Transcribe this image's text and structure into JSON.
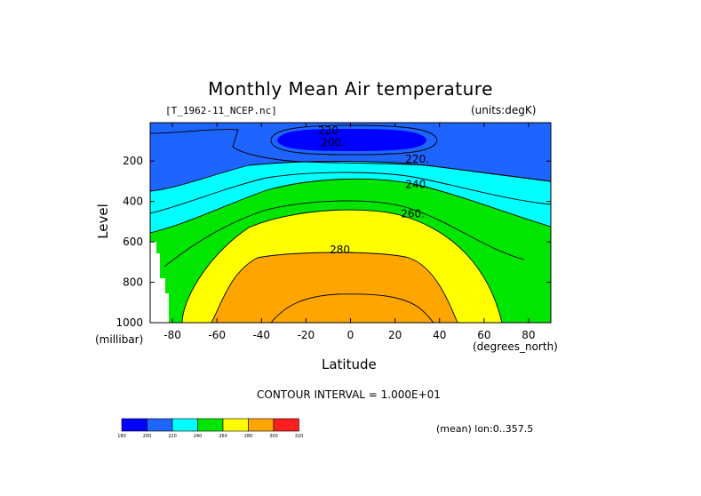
{
  "chart_data": {
    "type": "contour",
    "title": "Monthly Mean Air temperature",
    "file_label": "[T_1962-11_NCEP.nc]",
    "units_label": "(units:degK)",
    "xlabel": "Latitude",
    "xunit": "(degrees_north)",
    "ylabel": "Level",
    "yunit": "(millibar)",
    "xlim": [
      -90,
      90
    ],
    "ylim": [
      1000,
      10
    ],
    "xticks": [
      -80,
      -60,
      -40,
      -20,
      0,
      20,
      40,
      60,
      80
    ],
    "yticks": [
      200,
      400,
      600,
      800,
      1000
    ],
    "contour_interval_text": "CONTOUR INTERVAL = 1.000E+01",
    "mean_text": "(mean) lon:0..357.5",
    "contour_labels": [
      {
        "text": "220",
        "lat": -10,
        "level": 50
      },
      {
        "text": "200.",
        "lat": -8,
        "level": 110
      },
      {
        "text": "220.",
        "lat": 30,
        "level": 190
      },
      {
        "text": "240.",
        "lat": 30,
        "level": 315
      },
      {
        "text": "260.",
        "lat": 28,
        "level": 460
      },
      {
        "text": "280.",
        "lat": -4,
        "level": 640
      }
    ],
    "colorbar": {
      "levels": [
        "180",
        "200",
        "220",
        "240",
        "260",
        "280",
        "300",
        "320"
      ],
      "colors": [
        "#0000ff",
        "#1e64ff",
        "#00ffff",
        "#00e600",
        "#ffff00",
        "#ffa500",
        "#ff1e1e"
      ]
    }
  }
}
